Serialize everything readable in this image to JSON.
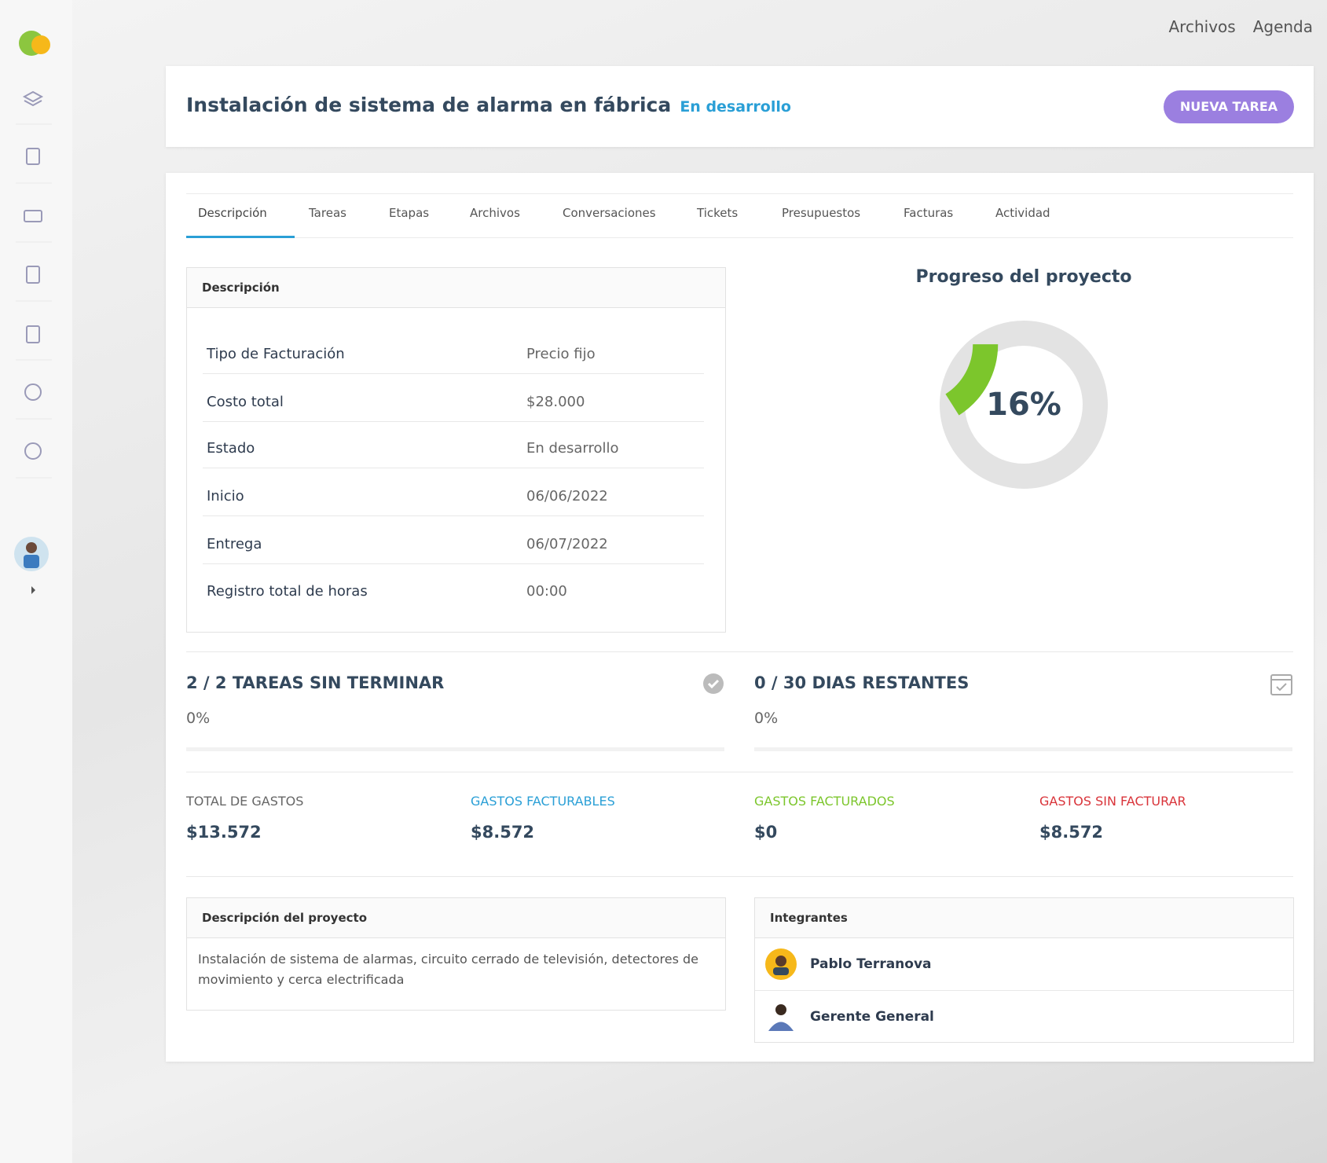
{
  "top_links": [
    "Archivos",
    "Agenda"
  ],
  "header": {
    "title": "Instalación de sistema de alarma en fábrica",
    "status": "En desarrollo",
    "button": "NUEVA TAREA"
  },
  "tabs": [
    "Descripción",
    "Tareas",
    "Etapas",
    "Archivos",
    "Conversaciones",
    "Tickets",
    "Presupuestos",
    "Facturas",
    "Actividad"
  ],
  "description_panel": {
    "title": "Descripción",
    "rows": [
      [
        "Tipo de Facturación",
        "Precio fijo"
      ],
      [
        "Costo total",
        "$28.000"
      ],
      [
        "Estado",
        "En desarrollo"
      ],
      [
        "Inicio",
        "06/06/2022"
      ],
      [
        "Entrega",
        "06/07/2022"
      ],
      [
        "Registro total de horas",
        "00:00"
      ]
    ]
  },
  "progress": {
    "title": "Progreso del proyecto",
    "values": [
      16
    ],
    "value_labels": [
      "16%"
    ],
    "color": "#7cc62c"
  },
  "stats": [
    {
      "title": "2 / 2 TAREAS SIN TERMINAR",
      "percent": "0%"
    },
    {
      "title": "0 / 30 DIAS RESTANTES",
      "percent": "0%"
    }
  ],
  "expenses": [
    {
      "label": "TOTAL DE GASTOS",
      "value": "$13.572",
      "color": "#666666"
    },
    {
      "label": "GASTOS FACTURABLES",
      "value": "$8.572",
      "color": "#2a9fd6"
    },
    {
      "label": "GASTOS FACTURADOS",
      "value": "$0",
      "color": "#7cc62c"
    },
    {
      "label": "GASTOS SIN FACTURAR",
      "value": "$8.572",
      "color": "#d9343a"
    }
  ],
  "project_description": {
    "title": "Descripción del proyecto",
    "text": "Instalación de sistema de alarmas, circuito cerrado de televisión, detectores de movimiento y cerca electrificada"
  },
  "members": {
    "title": "Integrantes",
    "names": [
      "Pablo Terranova",
      "Gerente General"
    ]
  }
}
